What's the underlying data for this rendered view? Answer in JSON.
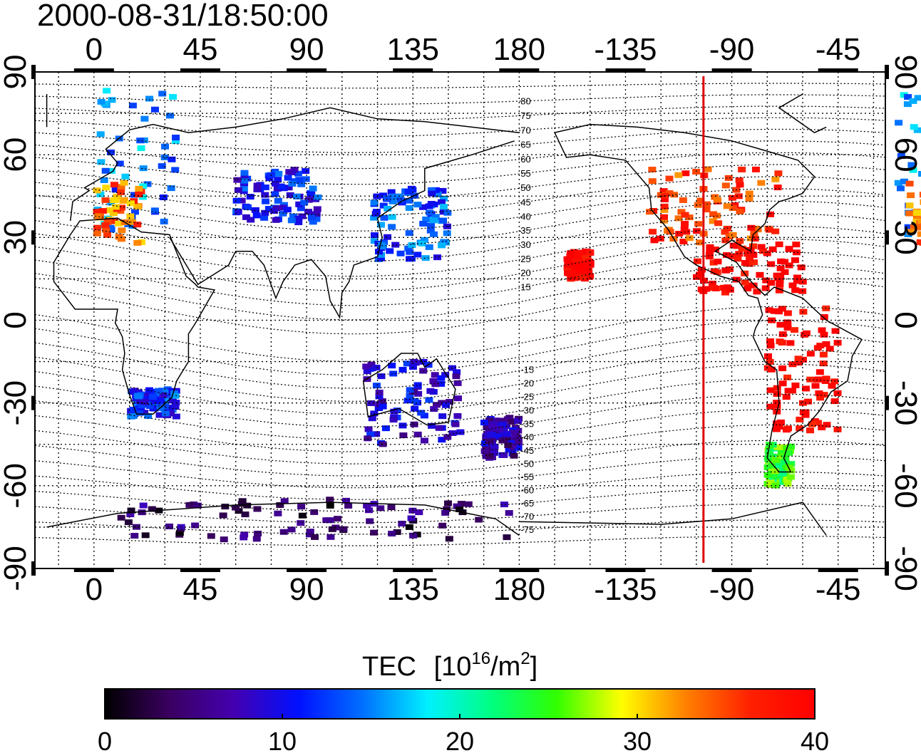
{
  "title": "2000-08-31/18:50:00",
  "x_axis": {
    "tick_labels": [
      "0",
      "45",
      "90",
      "135",
      "180",
      "-135",
      "-90",
      "-45"
    ],
    "tick_lons": [
      0,
      45,
      90,
      135,
      180,
      225,
      270,
      315
    ],
    "range_lon": [
      -25,
      335
    ]
  },
  "y_axis": {
    "tick_labels": [
      "90",
      "60",
      "30",
      "0",
      "-30",
      "-60",
      "-90"
    ],
    "tick_lats": [
      90,
      60,
      30,
      0,
      -30,
      -60,
      -90
    ],
    "range_lat": [
      -90,
      90
    ]
  },
  "geomagnetic_latitude_labels": [
    "80",
    "75",
    "70",
    "65",
    "60",
    "55",
    "50",
    "45",
    "40",
    "35",
    "30",
    "25",
    "20",
    "15",
    "-15",
    "-20",
    "-25",
    "-30",
    "-35",
    "-40",
    "-45",
    "-50",
    "-55",
    "-60",
    "-65",
    "-70",
    "-75"
  ],
  "terminator_longitude": -102,
  "colorbar": {
    "title_text": "TEC",
    "unit_base": "[10",
    "unit_exp": "16",
    "unit_mid": "/m",
    "unit_exp2": "2",
    "unit_end": "]",
    "min": 0,
    "max": 40,
    "tick_labels": [
      "0",
      "10",
      "20",
      "30",
      "40"
    ],
    "colormap": [
      "#000000",
      "#3a0060",
      "#4400b0",
      "#0010ff",
      "#0070ff",
      "#00f0ff",
      "#00ff80",
      "#30ff00",
      "#ffff00",
      "#ff8000",
      "#ff2000",
      "#ff0000"
    ]
  },
  "colors": {
    "terminator": "#dd0000",
    "grid": "#000000",
    "coast": "#000000"
  },
  "tec_regions": [
    {
      "name": "europe",
      "lon": [
        -20,
        35
      ],
      "lat": [
        30,
        85
      ],
      "tec": 15
    },
    {
      "name": "europe-south",
      "lon": [
        -15,
        20
      ],
      "lat": [
        28,
        50
      ],
      "tec": 34
    },
    {
      "name": "central-asia",
      "lon": [
        60,
        95
      ],
      "lat": [
        35,
        55
      ],
      "tec": 11
    },
    {
      "name": "east-asia",
      "lon": [
        118,
        150
      ],
      "lat": [
        22,
        48
      ],
      "tec": 13
    },
    {
      "name": "north-america",
      "lon": [
        -125,
        -70
      ],
      "lat": [
        28,
        55
      ],
      "tec": 36
    },
    {
      "name": "caribbean",
      "lon": [
        -105,
        -60
      ],
      "lat": [
        10,
        28
      ],
      "tec": 40
    },
    {
      "name": "south-america",
      "lon": [
        -75,
        -45
      ],
      "lat": [
        -40,
        5
      ],
      "tec": 40
    },
    {
      "name": "australia",
      "lon": [
        115,
        155
      ],
      "lat": [
        -45,
        -15
      ],
      "tec": 9
    },
    {
      "name": "new-zealand",
      "lon": [
        165,
        180
      ],
      "lat": [
        -50,
        -35
      ],
      "tec": 7
    },
    {
      "name": "antarctica",
      "lon": [
        10,
        180
      ],
      "lat": [
        -80,
        -65
      ],
      "tec": 4
    },
    {
      "name": "south-africa",
      "lon": [
        15,
        35
      ],
      "lat": [
        -35,
        -25
      ],
      "tec": 12
    },
    {
      "name": "pacific-hawaii",
      "lon": [
        -160,
        -150
      ],
      "lat": [
        15,
        25
      ],
      "tec": 40
    },
    {
      "name": "patagonia",
      "lon": [
        -75,
        -65
      ],
      "lat": [
        -60,
        -45
      ],
      "tec": 24
    }
  ]
}
